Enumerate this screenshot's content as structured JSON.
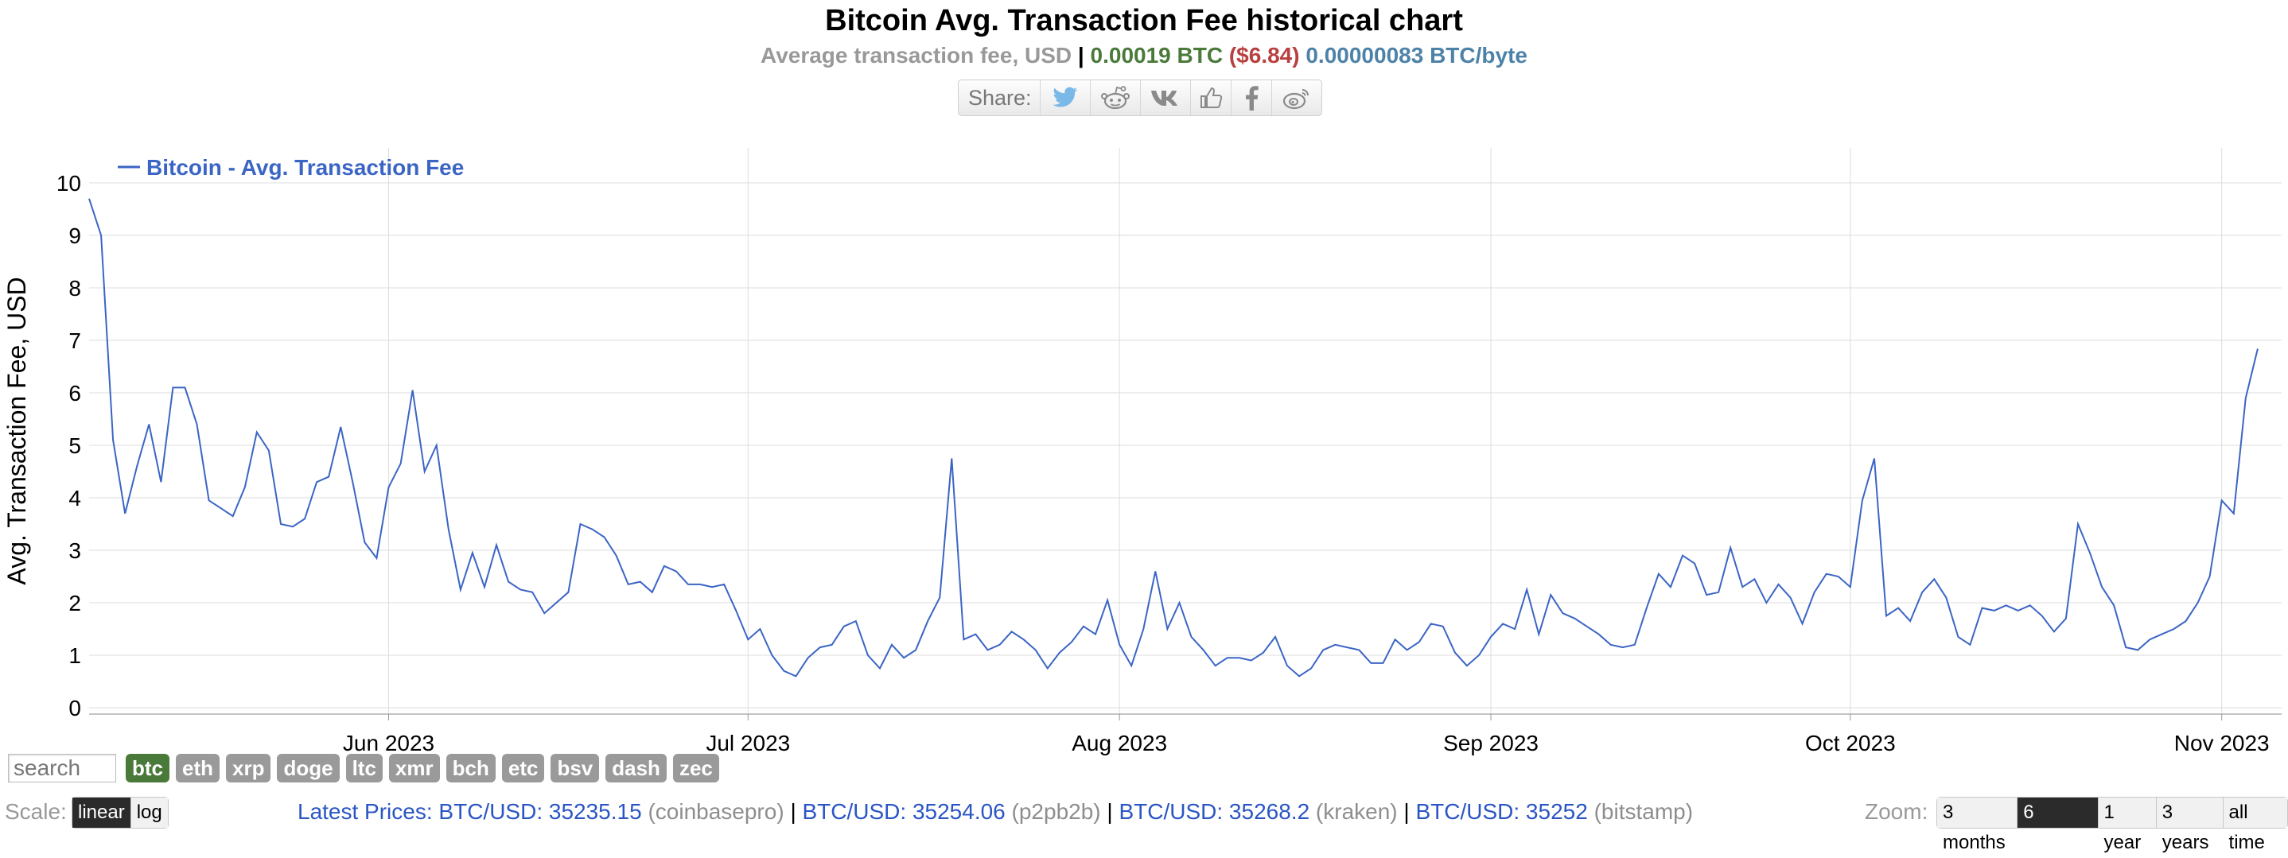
{
  "header": {
    "title": "Bitcoin Avg. Transaction Fee historical chart",
    "subtitle_label": "Average transaction fee, USD",
    "subtitle_sep": "|",
    "fee_btc": "0.00019 BTC",
    "fee_usd": "($6.84)",
    "fee_per_byte": "0.00000083 BTC/byte"
  },
  "share": {
    "label": "Share:",
    "buttons": [
      "twitter-icon",
      "reddit-icon",
      "vk-icon",
      "like-icon",
      "facebook-icon",
      "weibo-icon"
    ]
  },
  "chart_data": {
    "type": "line",
    "title": "",
    "xlabel": "",
    "ylabel": "Avg. Transaction Fee, USD",
    "legend_position": "top-left",
    "ylim": [
      0,
      10
    ],
    "xlim": [
      "2023-05-07",
      "2023-11-06"
    ],
    "grid": true,
    "y_ticks": [
      "0",
      "1",
      "2",
      "3",
      "4",
      "5",
      "6",
      "7",
      "8",
      "9",
      "10"
    ],
    "x_ticks": [
      {
        "date": "2023-06-01",
        "label": "Jun 2023"
      },
      {
        "date": "2023-07-01",
        "label": "Jul 2023"
      },
      {
        "date": "2023-08-01",
        "label": "Aug 2023"
      },
      {
        "date": "2023-09-01",
        "label": "Sep 2023"
      },
      {
        "date": "2023-10-01",
        "label": "Oct 2023"
      },
      {
        "date": "2023-11-01",
        "label": "Nov 2023"
      }
    ],
    "series": [
      {
        "name": "Bitcoin - Avg. Transaction Fee",
        "color": "#3b65c4",
        "points": [
          [
            "2023-05-07",
            9.7
          ],
          [
            "2023-05-08",
            9.0
          ],
          [
            "2023-05-09",
            5.1
          ],
          [
            "2023-05-10",
            3.7
          ],
          [
            "2023-05-11",
            4.6
          ],
          [
            "2023-05-12",
            5.4
          ],
          [
            "2023-05-13",
            4.3
          ],
          [
            "2023-05-14",
            6.1
          ],
          [
            "2023-05-15",
            6.1
          ],
          [
            "2023-05-16",
            5.4
          ],
          [
            "2023-05-17",
            3.95
          ],
          [
            "2023-05-18",
            3.8
          ],
          [
            "2023-05-19",
            3.65
          ],
          [
            "2023-05-20",
            4.2
          ],
          [
            "2023-05-21",
            5.25
          ],
          [
            "2023-05-22",
            4.9
          ],
          [
            "2023-05-23",
            3.5
          ],
          [
            "2023-05-24",
            3.45
          ],
          [
            "2023-05-25",
            3.6
          ],
          [
            "2023-05-26",
            4.3
          ],
          [
            "2023-05-27",
            4.4
          ],
          [
            "2023-05-28",
            5.35
          ],
          [
            "2023-05-29",
            4.3
          ],
          [
            "2023-05-30",
            3.15
          ],
          [
            "2023-05-31",
            2.85
          ],
          [
            "2023-06-01",
            4.2
          ],
          [
            "2023-06-02",
            4.65
          ],
          [
            "2023-06-03",
            6.05
          ],
          [
            "2023-06-04",
            4.5
          ],
          [
            "2023-06-05",
            5.0
          ],
          [
            "2023-06-06",
            3.4
          ],
          [
            "2023-06-07",
            2.25
          ],
          [
            "2023-06-08",
            2.95
          ],
          [
            "2023-06-09",
            2.3
          ],
          [
            "2023-06-10",
            3.1
          ],
          [
            "2023-06-11",
            2.4
          ],
          [
            "2023-06-12",
            2.25
          ],
          [
            "2023-06-13",
            2.2
          ],
          [
            "2023-06-14",
            1.8
          ],
          [
            "2023-06-15",
            2.0
          ],
          [
            "2023-06-16",
            2.2
          ],
          [
            "2023-06-17",
            3.5
          ],
          [
            "2023-06-18",
            3.4
          ],
          [
            "2023-06-19",
            3.25
          ],
          [
            "2023-06-20",
            2.9
          ],
          [
            "2023-06-21",
            2.35
          ],
          [
            "2023-06-22",
            2.4
          ],
          [
            "2023-06-23",
            2.2
          ],
          [
            "2023-06-24",
            2.7
          ],
          [
            "2023-06-25",
            2.6
          ],
          [
            "2023-06-26",
            2.35
          ],
          [
            "2023-06-27",
            2.35
          ],
          [
            "2023-06-28",
            2.3
          ],
          [
            "2023-06-29",
            2.35
          ],
          [
            "2023-06-30",
            1.85
          ],
          [
            "2023-07-01",
            1.3
          ],
          [
            "2023-07-02",
            1.5
          ],
          [
            "2023-07-03",
            1.0
          ],
          [
            "2023-07-04",
            0.7
          ],
          [
            "2023-07-05",
            0.6
          ],
          [
            "2023-07-06",
            0.95
          ],
          [
            "2023-07-07",
            1.15
          ],
          [
            "2023-07-08",
            1.2
          ],
          [
            "2023-07-09",
            1.55
          ],
          [
            "2023-07-10",
            1.65
          ],
          [
            "2023-07-11",
            1.0
          ],
          [
            "2023-07-12",
            0.75
          ],
          [
            "2023-07-13",
            1.2
          ],
          [
            "2023-07-14",
            0.95
          ],
          [
            "2023-07-15",
            1.1
          ],
          [
            "2023-07-16",
            1.65
          ],
          [
            "2023-07-17",
            2.1
          ],
          [
            "2023-07-18",
            4.75
          ],
          [
            "2023-07-19",
            1.3
          ],
          [
            "2023-07-20",
            1.4
          ],
          [
            "2023-07-21",
            1.1
          ],
          [
            "2023-07-22",
            1.2
          ],
          [
            "2023-07-23",
            1.45
          ],
          [
            "2023-07-24",
            1.3
          ],
          [
            "2023-07-25",
            1.1
          ],
          [
            "2023-07-26",
            0.75
          ],
          [
            "2023-07-27",
            1.05
          ],
          [
            "2023-07-28",
            1.25
          ],
          [
            "2023-07-29",
            1.55
          ],
          [
            "2023-07-30",
            1.4
          ],
          [
            "2023-07-31",
            2.05
          ],
          [
            "2023-08-01",
            1.2
          ],
          [
            "2023-08-02",
            0.8
          ],
          [
            "2023-08-03",
            1.5
          ],
          [
            "2023-08-04",
            2.6
          ],
          [
            "2023-08-05",
            1.5
          ],
          [
            "2023-08-06",
            2.0
          ],
          [
            "2023-08-07",
            1.35
          ],
          [
            "2023-08-08",
            1.1
          ],
          [
            "2023-08-09",
            0.8
          ],
          [
            "2023-08-10",
            0.95
          ],
          [
            "2023-08-11",
            0.95
          ],
          [
            "2023-08-12",
            0.9
          ],
          [
            "2023-08-13",
            1.05
          ],
          [
            "2023-08-14",
            1.35
          ],
          [
            "2023-08-15",
            0.8
          ],
          [
            "2023-08-16",
            0.6
          ],
          [
            "2023-08-17",
            0.75
          ],
          [
            "2023-08-18",
            1.1
          ],
          [
            "2023-08-19",
            1.2
          ],
          [
            "2023-08-20",
            1.15
          ],
          [
            "2023-08-21",
            1.1
          ],
          [
            "2023-08-22",
            0.85
          ],
          [
            "2023-08-23",
            0.85
          ],
          [
            "2023-08-24",
            1.3
          ],
          [
            "2023-08-25",
            1.1
          ],
          [
            "2023-08-26",
            1.25
          ],
          [
            "2023-08-27",
            1.6
          ],
          [
            "2023-08-28",
            1.55
          ],
          [
            "2023-08-29",
            1.05
          ],
          [
            "2023-08-30",
            0.8
          ],
          [
            "2023-08-31",
            1.0
          ],
          [
            "2023-09-01",
            1.35
          ],
          [
            "2023-09-02",
            1.6
          ],
          [
            "2023-09-03",
            1.5
          ],
          [
            "2023-09-04",
            2.25
          ],
          [
            "2023-09-05",
            1.4
          ],
          [
            "2023-09-06",
            2.15
          ],
          [
            "2023-09-07",
            1.8
          ],
          [
            "2023-09-08",
            1.7
          ],
          [
            "2023-09-09",
            1.55
          ],
          [
            "2023-09-10",
            1.4
          ],
          [
            "2023-09-11",
            1.2
          ],
          [
            "2023-09-12",
            1.15
          ],
          [
            "2023-09-13",
            1.2
          ],
          [
            "2023-09-14",
            1.9
          ],
          [
            "2023-09-15",
            2.55
          ],
          [
            "2023-09-16",
            2.3
          ],
          [
            "2023-09-17",
            2.9
          ],
          [
            "2023-09-18",
            2.75
          ],
          [
            "2023-09-19",
            2.15
          ],
          [
            "2023-09-20",
            2.2
          ],
          [
            "2023-09-21",
            3.05
          ],
          [
            "2023-09-22",
            2.3
          ],
          [
            "2023-09-23",
            2.45
          ],
          [
            "2023-09-24",
            2.0
          ],
          [
            "2023-09-25",
            2.35
          ],
          [
            "2023-09-26",
            2.1
          ],
          [
            "2023-09-27",
            1.6
          ],
          [
            "2023-09-28",
            2.2
          ],
          [
            "2023-09-29",
            2.55
          ],
          [
            "2023-09-30",
            2.5
          ],
          [
            "2023-10-01",
            2.3
          ],
          [
            "2023-10-02",
            3.95
          ],
          [
            "2023-10-03",
            4.75
          ],
          [
            "2023-10-04",
            1.75
          ],
          [
            "2023-10-05",
            1.9
          ],
          [
            "2023-10-06",
            1.65
          ],
          [
            "2023-10-07",
            2.2
          ],
          [
            "2023-10-08",
            2.45
          ],
          [
            "2023-10-09",
            2.1
          ],
          [
            "2023-10-10",
            1.35
          ],
          [
            "2023-10-11",
            1.2
          ],
          [
            "2023-10-12",
            1.9
          ],
          [
            "2023-10-13",
            1.85
          ],
          [
            "2023-10-14",
            1.95
          ],
          [
            "2023-10-15",
            1.85
          ],
          [
            "2023-10-16",
            1.95
          ],
          [
            "2023-10-17",
            1.75
          ],
          [
            "2023-10-18",
            1.45
          ],
          [
            "2023-10-19",
            1.7
          ],
          [
            "2023-10-20",
            3.5
          ],
          [
            "2023-10-21",
            2.95
          ],
          [
            "2023-10-22",
            2.3
          ],
          [
            "2023-10-23",
            1.95
          ],
          [
            "2023-10-24",
            1.15
          ],
          [
            "2023-10-25",
            1.1
          ],
          [
            "2023-10-26",
            1.3
          ],
          [
            "2023-10-27",
            1.4
          ],
          [
            "2023-10-28",
            1.5
          ],
          [
            "2023-10-29",
            1.65
          ],
          [
            "2023-10-30",
            2.0
          ],
          [
            "2023-10-31",
            2.5
          ],
          [
            "2023-11-01",
            3.95
          ],
          [
            "2023-11-02",
            3.7
          ],
          [
            "2023-11-03",
            5.9
          ],
          [
            "2023-11-04",
            6.84
          ]
        ]
      }
    ]
  },
  "coins": {
    "search_placeholder": "search",
    "items": [
      "btc",
      "eth",
      "xrp",
      "doge",
      "ltc",
      "xmr",
      "bch",
      "etc",
      "bsv",
      "dash",
      "zec"
    ],
    "active": "btc"
  },
  "scale": {
    "label": "Scale:",
    "options": [
      "linear",
      "log"
    ],
    "selected": "linear"
  },
  "prices": {
    "latest_label": "Latest Prices:",
    "items": [
      {
        "pair": "BTC/USD: 35235.15",
        "source": "(coinbasepro)"
      },
      {
        "pair": "BTC/USD: 35254.06",
        "source": "(p2pb2b)"
      },
      {
        "pair": "BTC/USD: 35268.2",
        "source": "(kraken)"
      },
      {
        "pair": "BTC/USD: 35252",
        "source": "(bitstamp)"
      }
    ],
    "separator": "|"
  },
  "zoom": {
    "label": "Zoom:",
    "options": [
      "3 months",
      "6 months",
      "1 year",
      "3 years",
      "all time"
    ],
    "selected": "6 months"
  },
  "colors": {
    "line": "#3b65c4",
    "active_coin": "#4a7a3a",
    "inactive_coin": "#9a9a9a",
    "price_link": "#2a55c4"
  }
}
